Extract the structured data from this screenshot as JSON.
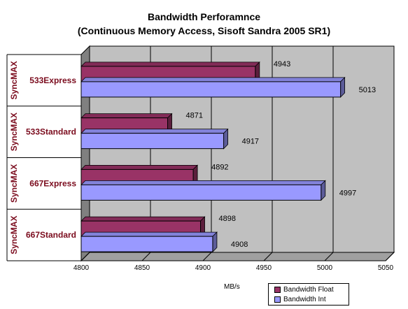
{
  "chart_data": {
    "type": "bar",
    "orientation": "horizontal",
    "title": "Bandwidth Perforamnce",
    "subtitle": "(Continuous Memory Access, Sisoft Sandra 2005 SR1)",
    "xlabel": "MB/s",
    "xlim": [
      4800,
      5050
    ],
    "x_ticks": [
      "4800",
      "4850",
      "4900",
      "4950",
      "5000",
      "5050"
    ],
    "grid": true,
    "legend_position": "bottom-right",
    "categories": [
      {
        "group": "SyncMAX",
        "name": "533Express"
      },
      {
        "group": "SyncMAX",
        "name": "533Standard"
      },
      {
        "group": "SyncMAX",
        "name": "667Express"
      },
      {
        "group": "SyncMAX",
        "name": "667Standard"
      }
    ],
    "series": [
      {
        "name": "Bandwidth Float",
        "color": "#993366",
        "values": [
          4943,
          4871,
          4892,
          4898
        ]
      },
      {
        "name": "Bandwidth Int",
        "color": "#9999ff",
        "values": [
          5013,
          4917,
          4997,
          4908
        ]
      }
    ]
  }
}
